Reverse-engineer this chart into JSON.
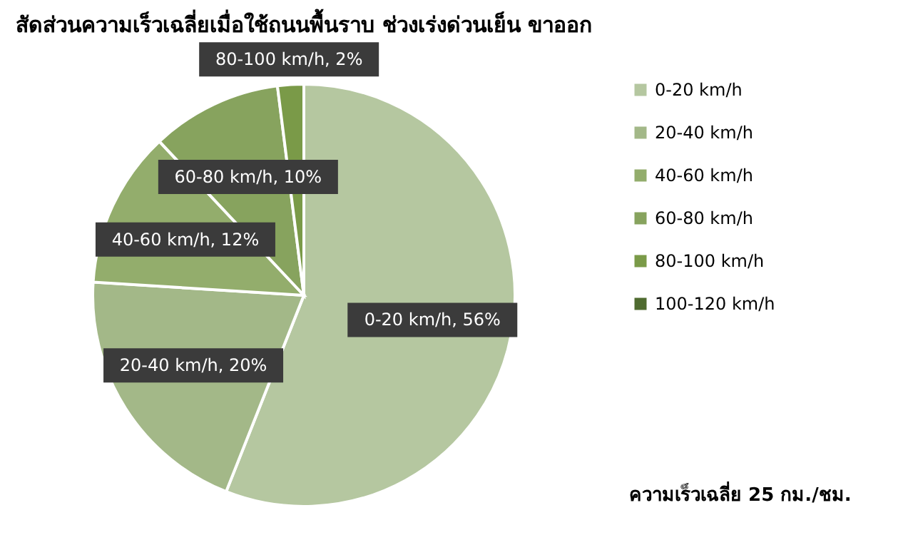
{
  "chart_data": {
    "type": "pie",
    "title": "สัดส่วนความเร็วเฉลี่ยเมื่อใช้ถนนพื้นราบ ช่วงเร่งด่วนเย็น ขาออก",
    "categories": [
      "0-20 km/h",
      "20-40 km/h",
      "40-60 km/h",
      "60-80 km/h",
      "80-100 km/h",
      "100-120 km/h"
    ],
    "values": [
      56,
      20,
      12,
      10,
      2,
      0
    ],
    "colors": [
      "#b5c7a0",
      "#a3b888",
      "#93ad6c",
      "#87a35e",
      "#7a9a48",
      "#4f6b30"
    ],
    "value_labels": [
      "0-20 km/h,  56%",
      "20-40 km/h,  20%",
      "40-60 km/h,  12%",
      "60-80 km/h,  10%",
      "80-100 km/h,  2%",
      null
    ],
    "legend": "right",
    "annotations": [
      "ความเร็วเฉลี่ย 25 กม./ชม."
    ]
  }
}
